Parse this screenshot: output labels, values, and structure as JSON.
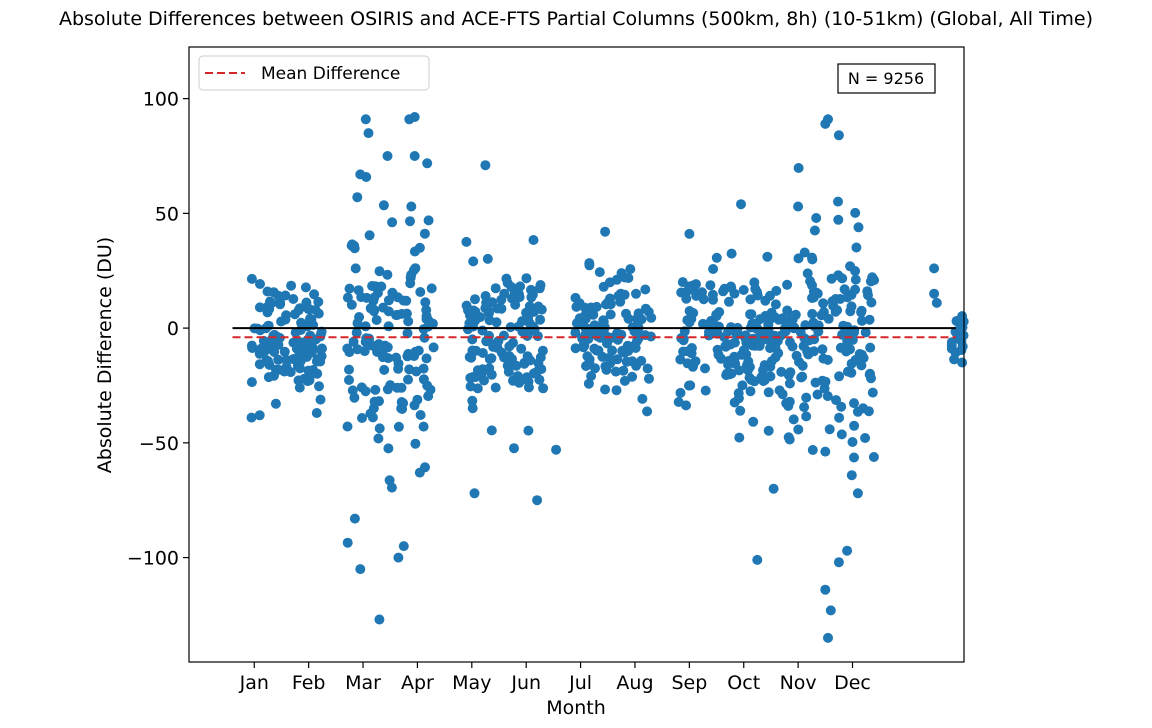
{
  "chart_data": {
    "type": "scatter",
    "title": "Absolute Differences between OSIRIS and ACE-FTS Partial Columns (500km, 8h) (10-51km) (Global, All Time)",
    "xlabel": "Month",
    "ylabel": "Absolute Difference (DU)",
    "x_ticks": [
      {
        "value": 1,
        "label": "Jan"
      },
      {
        "value": 2,
        "label": "Feb"
      },
      {
        "value": 3,
        "label": "Mar"
      },
      {
        "value": 4,
        "label": "Apr"
      },
      {
        "value": 5,
        "label": "May"
      },
      {
        "value": 6,
        "label": "Jun"
      },
      {
        "value": 7,
        "label": "Jul"
      },
      {
        "value": 8,
        "label": "Aug"
      },
      {
        "value": 9,
        "label": "Sep"
      },
      {
        "value": 10,
        "label": "Oct"
      },
      {
        "value": 11,
        "label": "Nov"
      },
      {
        "value": 12,
        "label": "Dec"
      }
    ],
    "y_ticks": [
      {
        "value": 100,
        "label": "100"
      },
      {
        "value": 50,
        "label": "50"
      },
      {
        "value": 0,
        "label": "0"
      },
      {
        "value": -50,
        "label": "−50"
      },
      {
        "value": -100,
        "label": "−100"
      }
    ],
    "xlim": [
      -0.2,
      14.05
    ],
    "ylim": [
      -145.5,
      122.5
    ],
    "zero_line": {
      "y": 0,
      "x_range": [
        0.6,
        13.9
      ],
      "color": "#000000"
    },
    "mean_difference": {
      "label": "Mean Difference",
      "value": -4,
      "x_range": [
        0.6,
        13.9
      ],
      "color": "#d62728",
      "style": "dashed"
    },
    "legend": {
      "position": "upper-left",
      "entries": [
        "Mean Difference"
      ]
    },
    "annotation": {
      "text": "N = 9256",
      "position": "upper-right"
    },
    "point_color": "#1f77b4",
    "clusters": [
      {
        "month": "Jan-Feb",
        "x_range": [
          0.95,
          2.25
        ],
        "y_center": -4,
        "y_spread": 12,
        "y_min": -39,
        "y_max": 26
      },
      {
        "month": "Mar-Apr",
        "x_range": [
          2.7,
          4.3
        ],
        "y_center": -3,
        "y_spread": 26,
        "y_min": -127,
        "y_max": 92
      },
      {
        "month": "May-Jun",
        "x_range": [
          4.9,
          6.35
        ],
        "y_center": -6,
        "y_spread": 16,
        "y_min": -75,
        "y_max": 71
      },
      {
        "month": "Jul-Aug",
        "x_range": [
          6.9,
          8.3
        ],
        "y_center": -3,
        "y_spread": 13,
        "y_min": -42,
        "y_max": 42
      },
      {
        "month": "Sep-Oct",
        "x_range": [
          8.8,
          10.7
        ],
        "y_center": -5,
        "y_spread": 15,
        "y_min": -101,
        "y_max": 55
      },
      {
        "month": "Nov-Dec",
        "x_range": [
          10.7,
          12.4
        ],
        "y_center": -6,
        "y_spread": 24,
        "y_min": -135,
        "y_max": 91
      },
      {
        "month": "late Dec",
        "x_range": [
          13.8,
          14.05
        ],
        "y_center": -3,
        "y_spread": 8,
        "y_min": -15,
        "y_max": 26
      }
    ],
    "notable_points": [
      {
        "x": 3.05,
        "y": 91
      },
      {
        "x": 3.1,
        "y": 85
      },
      {
        "x": 3.85,
        "y": 91
      },
      {
        "x": 3.95,
        "y": 92
      },
      {
        "x": 2.95,
        "y": 67
      },
      {
        "x": 3.45,
        "y": 75
      },
      {
        "x": 3.95,
        "y": 75
      },
      {
        "x": 3.3,
        "y": -127
      },
      {
        "x": 2.95,
        "y": -105
      },
      {
        "x": 3.65,
        "y": -100
      },
      {
        "x": 2.85,
        "y": -83
      },
      {
        "x": 3.75,
        "y": -95
      },
      {
        "x": 5.25,
        "y": 71
      },
      {
        "x": 5.05,
        "y": -72
      },
      {
        "x": 6.2,
        "y": -75
      },
      {
        "x": 6.55,
        "y": -53
      },
      {
        "x": 7.45,
        "y": 42
      },
      {
        "x": 10.25,
        "y": -101
      },
      {
        "x": 10.55,
        "y": -70
      },
      {
        "x": 9.95,
        "y": 54
      },
      {
        "x": 11.0,
        "y": 53
      },
      {
        "x": 11.5,
        "y": 89
      },
      {
        "x": 11.55,
        "y": 91
      },
      {
        "x": 11.75,
        "y": 84
      },
      {
        "x": 11.55,
        "y": -135
      },
      {
        "x": 11.5,
        "y": -114
      },
      {
        "x": 11.6,
        "y": -123
      },
      {
        "x": 11.9,
        "y": -97
      },
      {
        "x": 11.75,
        "y": -102
      },
      {
        "x": 12.1,
        "y": -72
      },
      {
        "x": 13.5,
        "y": 26
      },
      {
        "x": 13.5,
        "y": 15
      },
      {
        "x": 13.55,
        "y": 11
      },
      {
        "x": 2.15,
        "y": -37
      },
      {
        "x": 0.95,
        "y": -39
      },
      {
        "x": 1.1,
        "y": -38
      }
    ]
  }
}
